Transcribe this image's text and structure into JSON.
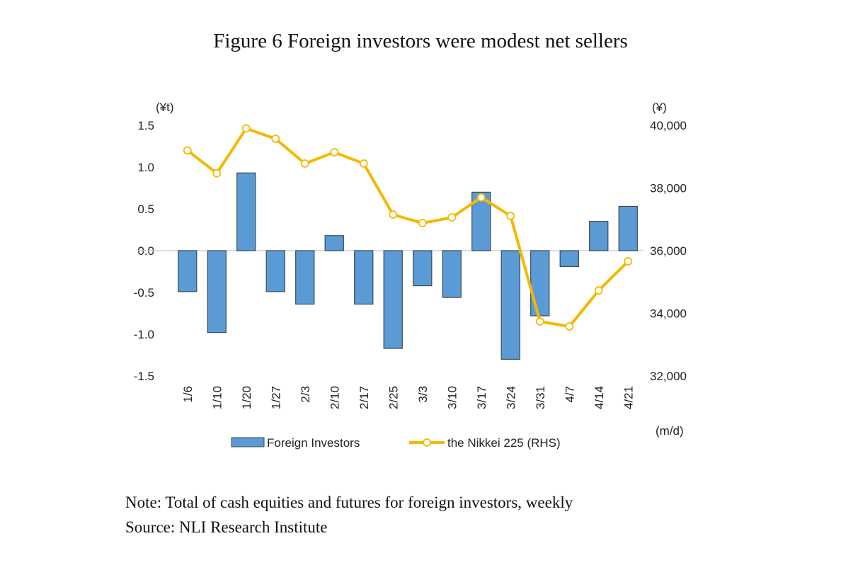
{
  "title": "Figure 6 Foreign investors were modest net sellers",
  "chart_data": {
    "type": "bar+line",
    "categories": [
      "1/6",
      "1/10",
      "1/20",
      "1/27",
      "2/3",
      "2/10",
      "2/17",
      "2/25",
      "3/3",
      "3/10",
      "3/17",
      "3/24",
      "3/31",
      "4/7",
      "4/14",
      "4/21"
    ],
    "series": [
      {
        "name": "Foreign Investors",
        "type": "bar",
        "axis": "left",
        "color": "#5b9bd5",
        "values": [
          -0.49,
          -0.98,
          0.93,
          -0.49,
          -0.64,
          0.18,
          -0.64,
          -1.17,
          -0.42,
          -0.56,
          0.7,
          -1.3,
          -0.78,
          -0.19,
          0.35,
          0.53
        ]
      },
      {
        "name": "the Nikkei 225 (RHS)",
        "type": "line",
        "axis": "right",
        "color": "#f5b800",
        "values": [
          39200,
          38470,
          39900,
          39570,
          38780,
          39140,
          38780,
          37150,
          36880,
          37060,
          37700,
          37110,
          33740,
          33580,
          34730,
          35660
        ]
      }
    ],
    "left_axis": {
      "unit": "(¥t)",
      "range": [
        -1.5,
        1.5
      ],
      "ticks": [
        "1.5",
        "1.0",
        "0.5",
        "0.0",
        "-0.5",
        "-1.0",
        "-1.5"
      ]
    },
    "right_axis": {
      "unit": "(¥)",
      "range": [
        32000,
        40000
      ],
      "ticks": [
        "40,000",
        "38,000",
        "36,000",
        "34,000",
        "32,000"
      ]
    },
    "xlabel": "(m/d)",
    "legend_position": "bottom",
    "grid": false
  },
  "notes": {
    "note": "Note: Total of cash equities and futures for foreign investors, weekly",
    "source": "Source: NLI Research Institute"
  }
}
